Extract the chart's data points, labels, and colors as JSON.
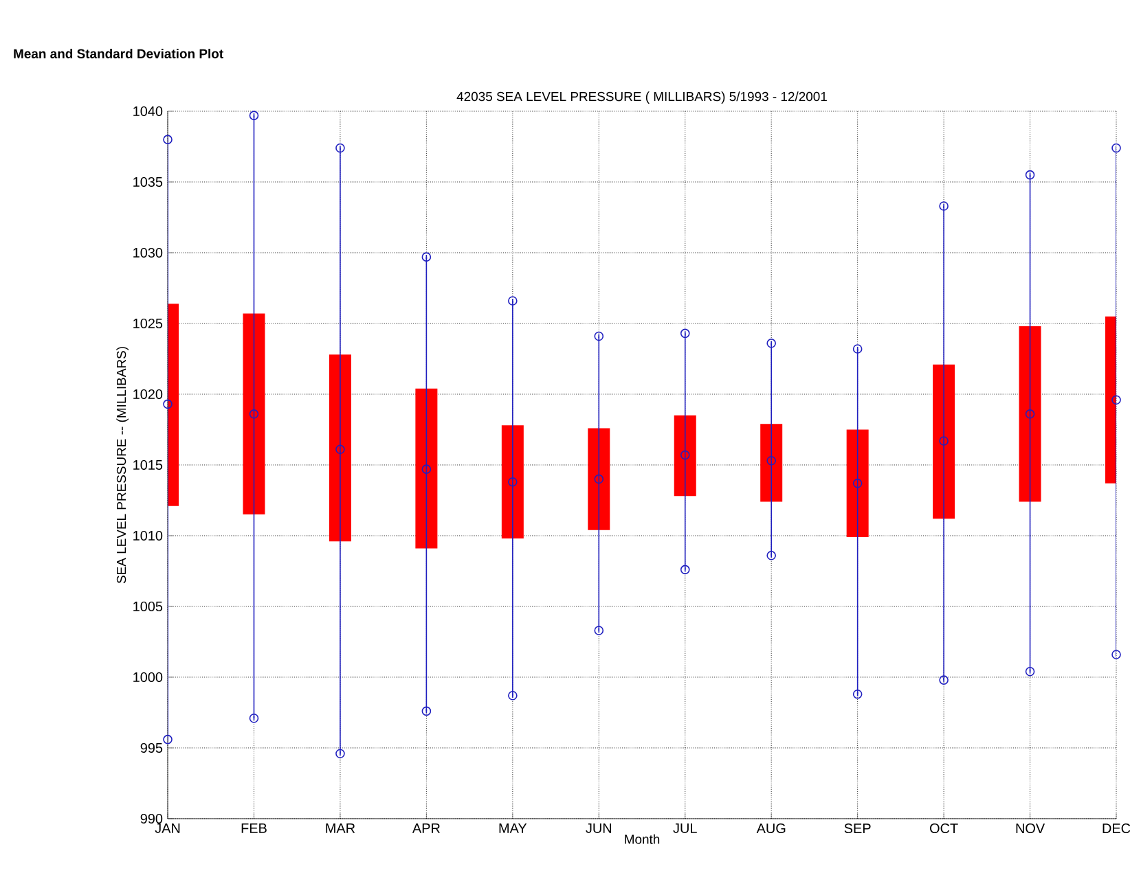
{
  "chart_data": {
    "type": "bar",
    "title": "Mean and Standard Deviation Plot",
    "subtitle": "42035  SEA LEVEL PRESSURE ( MILLIBARS) 5/1993 - 12/2001",
    "xlabel": "Month",
    "ylabel": "SEA LEVEL PRESSURE -- (MILLIBARS)",
    "categories": [
      "JAN",
      "FEB",
      "MAR",
      "APR",
      "MAY",
      "JUN",
      "JUL",
      "AUG",
      "SEP",
      "OCT",
      "NOV",
      "DEC"
    ],
    "series": [
      {
        "color": "#ff0000",
        "base": [
          1012.1,
          1011.5,
          1009.6,
          1009.1,
          1009.8,
          1010.4,
          1012.8,
          1012.4,
          1009.9,
          1011.2,
          1012.4,
          1013.7
        ],
        "values": [
          14.3,
          14.2,
          13.2,
          11.3,
          8.0,
          7.2,
          5.7,
          5.5,
          7.6,
          10.9,
          12.4,
          11.8
        ]
      },
      {
        "type": "scatter",
        "color": "#2020c0",
        "marker": "circle",
        "values": [
          1019.3,
          1018.6,
          1016.1,
          1014.7,
          1013.8,
          1014.0,
          1015.7,
          1015.3,
          1013.7,
          1016.7,
          1018.6,
          1019.6
        ],
        "errors": [
          [
            995.6,
            1038.0
          ],
          [
            997.1,
            1039.7
          ],
          [
            994.6,
            1037.4
          ],
          [
            997.6,
            1029.7
          ],
          [
            998.7,
            1026.6
          ],
          [
            1003.3,
            1024.1
          ],
          [
            1007.6,
            1024.3
          ],
          [
            1008.6,
            1023.6
          ],
          [
            998.8,
            1023.2
          ],
          [
            999.8,
            1033.3
          ],
          [
            1000.4,
            1035.5
          ],
          [
            1001.6,
            1037.4
          ]
        ]
      },
      {
        "type": "scatter",
        "color": "#2020c0",
        "marker": "circle",
        "values": [
          995.6,
          997.1,
          994.6,
          997.6,
          998.7,
          1003.3,
          1007.6,
          1008.6,
          998.8,
          999.8,
          1000.4,
          1001.6
        ]
      },
      {
        "type": "scatter",
        "color": "#2020c0",
        "marker": "circle",
        "values": [
          1038.0,
          1039.7,
          1037.4,
          1029.7,
          1026.6,
          1024.1,
          1024.3,
          1023.6,
          1023.2,
          1033.3,
          1035.5,
          1037.4
        ]
      }
    ],
    "ylim": [
      990,
      1040
    ],
    "yticks": [
      990,
      995,
      1000,
      1005,
      1010,
      1015,
      1020,
      1025,
      1030,
      1035,
      1040
    ],
    "grid": true
  }
}
